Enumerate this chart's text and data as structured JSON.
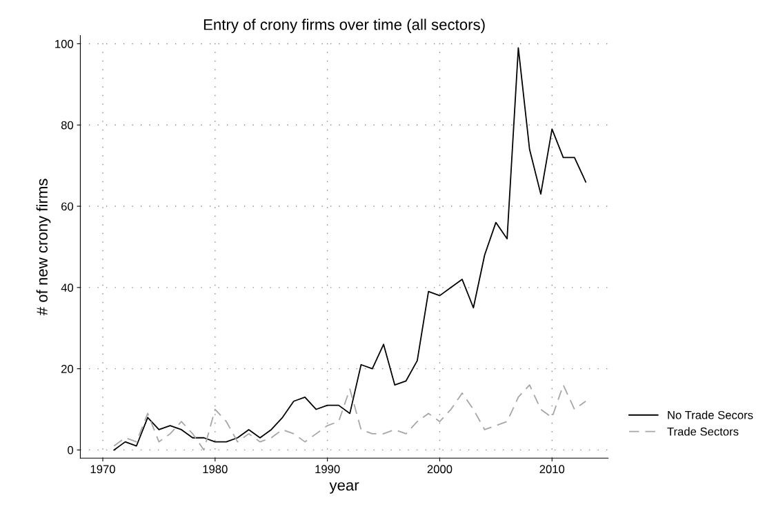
{
  "chart_data": {
    "type": "line",
    "title": "Entry of crony firms over time (all sectors)",
    "xlabel": "year",
    "ylabel": "# of new crony firms",
    "x": [
      1971,
      1972,
      1973,
      1974,
      1975,
      1976,
      1977,
      1978,
      1979,
      1980,
      1981,
      1982,
      1983,
      1984,
      1985,
      1986,
      1987,
      1988,
      1989,
      1990,
      1991,
      1992,
      1993,
      1994,
      1995,
      1996,
      1997,
      1998,
      1999,
      2000,
      2001,
      2002,
      2003,
      2004,
      2005,
      2006,
      2007,
      2008,
      2009,
      2010,
      2011,
      2012,
      2013
    ],
    "series": [
      {
        "name": "No Trade Secors",
        "color": "#000000",
        "line_style": "solid",
        "values": [
          0,
          2,
          1,
          8,
          5,
          6,
          5,
          3,
          3,
          2,
          2,
          3,
          5,
          3,
          5,
          8,
          12,
          13,
          10,
          11,
          11,
          9,
          21,
          20,
          26,
          16,
          17,
          22,
          39,
          38,
          40,
          42,
          35,
          48,
          56,
          52,
          99,
          74,
          63,
          79,
          72,
          72,
          66
        ]
      },
      {
        "name": "Trade Sectors",
        "color": "#a6a6a6",
        "line_style": "dashed",
        "values": [
          1,
          3,
          2,
          9,
          2,
          4,
          7,
          4,
          0,
          10,
          7,
          2,
          4,
          2,
          3,
          5,
          4,
          2,
          4,
          6,
          7,
          15,
          5,
          4,
          4,
          5,
          4,
          7,
          9,
          7,
          10,
          14,
          10,
          5,
          6,
          7,
          13,
          16,
          10,
          8,
          16,
          10,
          12
        ]
      }
    ],
    "xlim": [
      1968,
      2015
    ],
    "ylim": [
      -2,
      102
    ],
    "xticks": [
      1970,
      1980,
      1990,
      2000,
      2010
    ],
    "yticks": [
      0,
      20,
      40,
      60,
      80,
      100
    ],
    "grid": true,
    "legend": "right",
    "marker": "none"
  }
}
